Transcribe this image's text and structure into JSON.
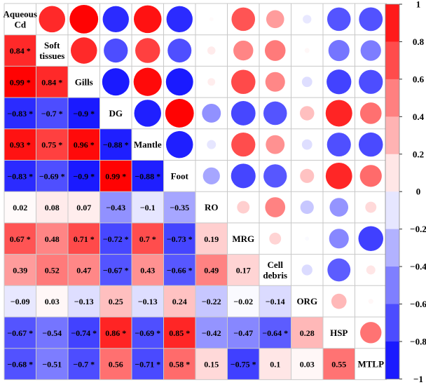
{
  "chart_data": {
    "type": "heatmap",
    "title": "",
    "variables": [
      "Aqueous Cd",
      "Soft tissues",
      "Gills",
      "DG",
      "Mantle",
      "Foot",
      "RO",
      "MRG",
      "Cell debris",
      "ORG",
      "HSP",
      "MTLP"
    ],
    "variable_label_lines": [
      [
        "Aqueous",
        "Cd"
      ],
      [
        "Soft",
        "tissues"
      ],
      [
        "Gills"
      ],
      [
        "DG"
      ],
      [
        "Mantle"
      ],
      [
        "Foot"
      ],
      [
        "RO"
      ],
      [
        "MRG"
      ],
      [
        "Cell",
        "debris"
      ],
      [
        "ORG"
      ],
      [
        "HSP"
      ],
      [
        "MTLP"
      ]
    ],
    "lower_triangle": "numeric correlation coefficient, * marks significance",
    "upper_triangle": "circle, size and color by coefficient",
    "matrix": [
      [
        1,
        0.84,
        0.99,
        -0.83,
        0.93,
        -0.83,
        0.02,
        0.67,
        0.39,
        -0.09,
        -0.67,
        -0.68
      ],
      [
        0.84,
        1,
        0.84,
        -0.7,
        0.75,
        -0.69,
        0.08,
        0.48,
        0.52,
        0.03,
        -0.54,
        -0.51
      ],
      [
        0.99,
        0.84,
        1,
        -0.9,
        0.96,
        -0.9,
        0.07,
        0.71,
        0.47,
        -0.13,
        -0.74,
        -0.7
      ],
      [
        -0.83,
        -0.7,
        -0.9,
        1,
        -0.88,
        0.99,
        -0.43,
        -0.72,
        -0.67,
        0.25,
        0.86,
        0.56
      ],
      [
        0.93,
        0.75,
        0.96,
        -0.88,
        1,
        -0.88,
        -0.1,
        0.7,
        0.43,
        -0.13,
        -0.69,
        -0.71
      ],
      [
        -0.83,
        -0.69,
        -0.9,
        0.99,
        -0.88,
        1,
        -0.35,
        -0.73,
        -0.66,
        0.24,
        0.85,
        0.58
      ],
      [
        0.02,
        0.08,
        0.07,
        -0.43,
        -0.1,
        -0.35,
        1,
        0.19,
        0.49,
        -0.22,
        -0.42,
        0.15
      ],
      [
        0.67,
        0.48,
        0.71,
        -0.72,
        0.7,
        -0.73,
        0.19,
        1,
        0.17,
        -0.02,
        -0.47,
        -0.75
      ],
      [
        0.39,
        0.52,
        0.47,
        -0.67,
        0.43,
        -0.66,
        0.49,
        0.17,
        1,
        -0.14,
        -0.64,
        0.1
      ],
      [
        -0.09,
        0.03,
        -0.13,
        0.25,
        -0.13,
        0.24,
        -0.22,
        -0.02,
        -0.14,
        1,
        0.28,
        0.03
      ],
      [
        -0.67,
        -0.54,
        -0.74,
        0.86,
        -0.69,
        0.85,
        -0.42,
        -0.47,
        -0.64,
        0.28,
        1,
        0.55
      ],
      [
        -0.68,
        -0.51,
        -0.7,
        0.56,
        -0.71,
        0.58,
        0.15,
        -0.75,
        0.1,
        0.03,
        0.55,
        1
      ]
    ],
    "significant": [
      [
        0,
        1,
        1,
        1,
        1,
        1,
        0,
        1,
        0,
        0,
        1,
        1
      ],
      [
        1,
        0,
        1,
        1,
        1,
        1,
        0,
        0,
        0,
        0,
        0,
        0
      ],
      [
        1,
        1,
        0,
        1,
        1,
        1,
        0,
        1,
        0,
        0,
        1,
        1
      ],
      [
        1,
        1,
        1,
        0,
        1,
        1,
        0,
        1,
        1,
        0,
        1,
        0
      ],
      [
        1,
        1,
        1,
        1,
        0,
        1,
        0,
        1,
        0,
        0,
        1,
        1
      ],
      [
        1,
        1,
        1,
        1,
        1,
        0,
        0,
        1,
        1,
        0,
        1,
        1
      ],
      [
        0,
        0,
        0,
        0,
        0,
        0,
        0,
        0,
        0,
        0,
        0,
        0
      ],
      [
        1,
        0,
        1,
        1,
        1,
        1,
        0,
        0,
        0,
        0,
        0,
        1
      ],
      [
        0,
        0,
        0,
        1,
        0,
        1,
        0,
        0,
        0,
        0,
        1,
        0
      ],
      [
        0,
        0,
        0,
        0,
        0,
        0,
        0,
        0,
        0,
        0,
        0,
        0
      ],
      [
        1,
        0,
        1,
        1,
        1,
        1,
        0,
        0,
        1,
        0,
        0,
        0
      ],
      [
        1,
        0,
        1,
        0,
        1,
        1,
        0,
        1,
        0,
        0,
        0,
        0
      ]
    ],
    "colorbar": {
      "range": [
        -1,
        1
      ],
      "ticks": [
        "1",
        "0.8",
        "0.6",
        "0.4",
        "0.2",
        "0",
        "−0.2",
        "−0.4",
        "−0.6",
        "−0.8",
        "−1"
      ],
      "levels": 10
    },
    "colors": {
      "positive": "#ff0000",
      "negative": "#0000ff",
      "neutral": "#ffffff",
      "grid": "#c8c8c8",
      "text": "#000000"
    }
  }
}
